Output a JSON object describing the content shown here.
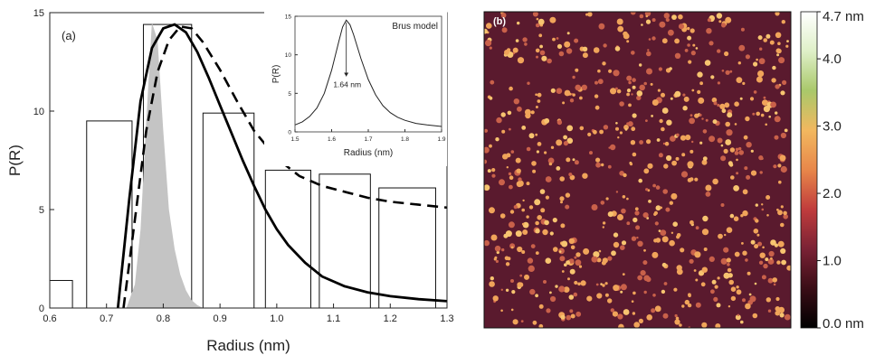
{
  "chart_data": [
    {
      "type": "bar",
      "panel_label": "(a)",
      "xlabel": "Radius (nm)",
      "ylabel": "P(R)",
      "xlim": [
        0.6,
        1.3
      ],
      "ylim": [
        0,
        15
      ],
      "xticks": [
        "0.6",
        "0.7",
        "0.8",
        "0.9",
        "1.0",
        "1.1",
        "1.2",
        "1.3"
      ],
      "yticks": [
        "0",
        "5",
        "10",
        "15"
      ],
      "histogram": [
        {
          "x0": 0.6,
          "x1": 0.64,
          "value": 1.4
        },
        {
          "x0": 0.665,
          "x1": 0.745,
          "value": 9.5
        },
        {
          "x0": 0.765,
          "x1": 0.85,
          "value": 14.4
        },
        {
          "x0": 0.87,
          "x1": 0.96,
          "value": 9.9
        },
        {
          "x0": 0.98,
          "x1": 1.06,
          "value": 7.0
        },
        {
          "x0": 1.075,
          "x1": 1.165,
          "value": 6.8
        },
        {
          "x0": 1.18,
          "x1": 1.28,
          "value": 6.1
        }
      ],
      "series": [
        {
          "style": "solid",
          "x": [
            0.72,
            0.74,
            0.76,
            0.78,
            0.8,
            0.82,
            0.84,
            0.86,
            0.88,
            0.9,
            0.92,
            0.94,
            0.96,
            0.98,
            1.0,
            1.02,
            1.05,
            1.08,
            1.12,
            1.16,
            1.2,
            1.25,
            1.3
          ],
          "values": [
            0,
            5.5,
            10.5,
            13.2,
            14.2,
            14.4,
            14.0,
            13.0,
            11.7,
            10.3,
            8.9,
            7.5,
            6.2,
            5.0,
            4.0,
            3.2,
            2.3,
            1.6,
            1.1,
            0.8,
            0.6,
            0.45,
            0.35
          ]
        },
        {
          "style": "dashed",
          "x": [
            0.73,
            0.75,
            0.77,
            0.79,
            0.81,
            0.83,
            0.85,
            0.87,
            0.9,
            0.93,
            0.96,
            1.0,
            1.04,
            1.08,
            1.12,
            1.16,
            1.2,
            1.25,
            1.3
          ],
          "values": [
            0,
            4.5,
            9.0,
            12.0,
            13.6,
            14.3,
            14.2,
            13.5,
            12.1,
            10.5,
            9.0,
            7.6,
            6.7,
            6.2,
            5.9,
            5.6,
            5.4,
            5.25,
            5.1
          ]
        },
        {
          "style": "filled-grey",
          "x": [
            0.735,
            0.75,
            0.76,
            0.77,
            0.78,
            0.79,
            0.8,
            0.81,
            0.82,
            0.83,
            0.84,
            0.85,
            0.86,
            0.87
          ],
          "values": [
            0,
            1.2,
            4.0,
            9.5,
            14.5,
            13.6,
            9.0,
            5.0,
            3.0,
            1.7,
            0.9,
            0.4,
            0.15,
            0
          ]
        }
      ]
    },
    {
      "type": "line",
      "label": "Brus model",
      "annotation": "1.64 nm",
      "xlabel": "Radius (nm)",
      "ylabel": "P(R)",
      "xlim": [
        1.5,
        1.9
      ],
      "ylim": [
        0,
        15
      ],
      "xticks": [
        "1.5",
        "1.6",
        "1.7",
        "1.8",
        "1.9"
      ],
      "yticks": [
        "0",
        "5",
        "10",
        "15"
      ],
      "x": [
        1.5,
        1.52,
        1.54,
        1.56,
        1.58,
        1.6,
        1.62,
        1.63,
        1.64,
        1.65,
        1.66,
        1.68,
        1.7,
        1.72,
        1.74,
        1.76,
        1.78,
        1.8,
        1.83,
        1.86,
        1.9
      ],
      "values": [
        0.9,
        1.3,
        2.0,
        3.1,
        5.0,
        8.0,
        11.8,
        13.6,
        14.5,
        13.9,
        12.6,
        9.5,
        6.8,
        4.8,
        3.4,
        2.5,
        1.9,
        1.5,
        1.1,
        0.9,
        0.7
      ]
    },
    {
      "type": "heatmap",
      "panel_label": "(b)",
      "colorbar": {
        "ticks": [
          "4.7 nm",
          "4.0",
          "3.0",
          "2.0",
          "1.0",
          "0.0 nm"
        ],
        "values": [
          4.7,
          4.0,
          3.0,
          2.0,
          1.0,
          0.0
        ],
        "range": [
          0,
          4.7
        ],
        "colors": [
          "#000000",
          "#3a0d16",
          "#7a2235",
          "#c03c3c",
          "#e8874a",
          "#f2b85f",
          "#a9c86a",
          "#dff0c8",
          "#ffffff"
        ]
      },
      "background_color": "#5a1a2e",
      "particle_color": "#f0a45a"
    }
  ]
}
